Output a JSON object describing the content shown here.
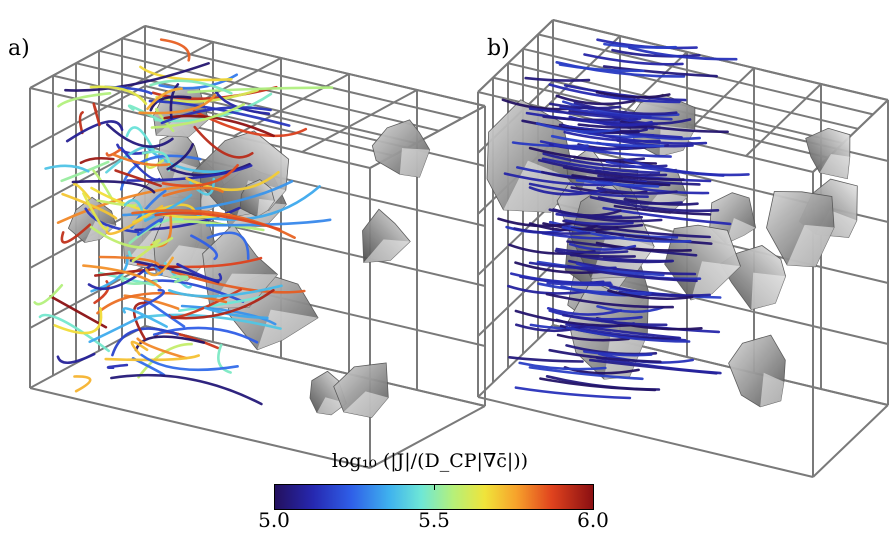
{
  "panels": [
    {
      "label": "a)"
    },
    {
      "label": "b)"
    }
  ],
  "colorbar": {
    "title": "log₁₀ (|J|/(D_CP|∇c̄|))",
    "ticks": [
      "5.0",
      "5.5",
      "6.0"
    ],
    "range": [
      5.0,
      6.0
    ],
    "colormap": "jet-like (dark blue → cyan → yellow → dark red)"
  },
  "colors": {
    "grain": "#8c8c8c",
    "grid": "#7a7a7a",
    "low_flux": "#1b1fb0",
    "high_flux": "#8a0f12"
  }
}
